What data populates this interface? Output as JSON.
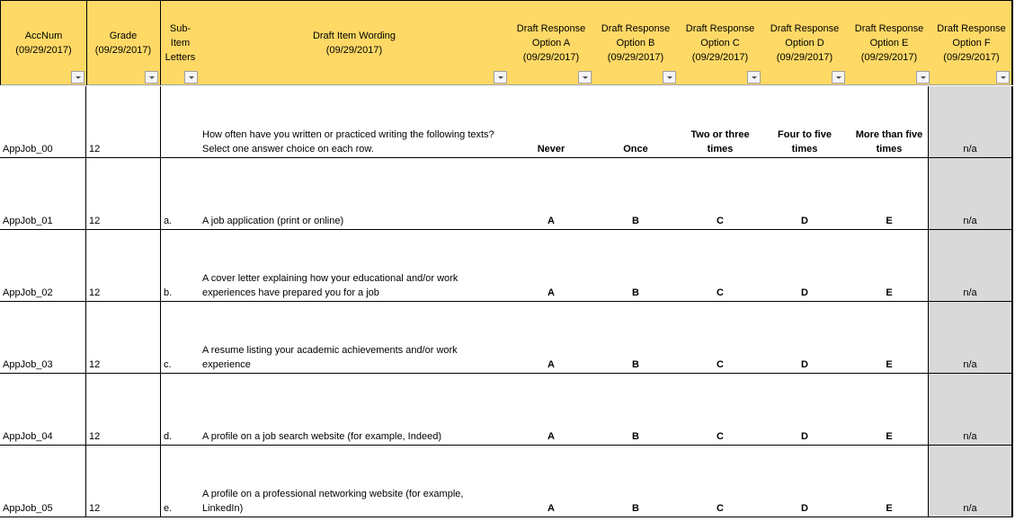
{
  "headers": [
    "AccNum\n(09/29/2017)",
    "Grade\n(09/29/2017)",
    "Sub-\nItem\nLetters",
    "Draft Item Wording\n(09/29/2017)",
    "Draft Response\nOption A\n(09/29/2017)",
    "Draft Response\nOption B\n(09/29/2017)",
    "Draft Response\nOption C\n(09/29/2017)",
    "Draft Response\nOption D\n(09/29/2017)",
    "Draft Response\nOption E\n(09/29/2017)",
    "Draft Response\nOption F\n(09/29/2017)"
  ],
  "rows": [
    {
      "acc": "AppJob_00",
      "grade": "12",
      "sub": "",
      "wording": "How often have you written or practiced writing the following texts? Select one answer choice on each row.",
      "a": "Never",
      "b": "Once",
      "c": "Two or three times",
      "d": "Four to five times",
      "e": "More than five times",
      "f": "n/a"
    },
    {
      "acc": "AppJob_01",
      "grade": "12",
      "sub": "a.",
      "wording": "A job application (print or online)",
      "a": "A",
      "b": "B",
      "c": "C",
      "d": "D",
      "e": "E",
      "f": "n/a"
    },
    {
      "acc": "AppJob_02",
      "grade": "12",
      "sub": "b.",
      "wording": "A cover letter explaining how your educational and/or work experiences have prepared you for a job",
      "a": "A",
      "b": "B",
      "c": "C",
      "d": "D",
      "e": "E",
      "f": "n/a"
    },
    {
      "acc": "AppJob_03",
      "grade": "12",
      "sub": "c.",
      "wording": "A resume listing your academic achievements and/or work experience",
      "a": "A",
      "b": "B",
      "c": "C",
      "d": "D",
      "e": "E",
      "f": "n/a"
    },
    {
      "acc": "AppJob_04",
      "grade": "12",
      "sub": "d.",
      "wording": "A profile on a job search website (for example, Indeed)",
      "a": "A",
      "b": "B",
      "c": "C",
      "d": "D",
      "e": "E",
      "f": "n/a"
    },
    {
      "acc": "AppJob_05",
      "grade": "12",
      "sub": "e.",
      "wording": "A profile on a professional networking website (for example, LinkedIn)",
      "a": "A",
      "b": "B",
      "c": "C",
      "d": "D",
      "e": "E",
      "f": "n/a"
    }
  ],
  "colors": {
    "header_bg": "#ffd966",
    "na_bg": "#d9d9d9"
  }
}
